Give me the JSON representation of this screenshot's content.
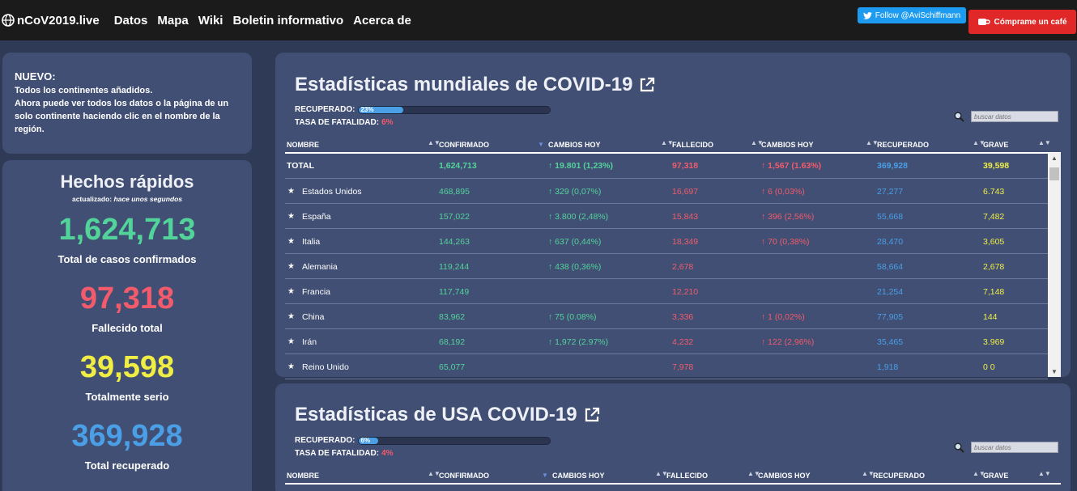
{
  "nav": {
    "brand": "nCoV2019.live",
    "items": [
      "Datos",
      "Mapa",
      "Wiki",
      "Boletin informativo",
      "Acerca de"
    ],
    "twitter": "Follow @AviSchiffmann",
    "coffee": "Cómprame un café"
  },
  "news": {
    "title": "NUEVO:",
    "line1": "Todos los continentes añadidos.",
    "line2": "Ahora puede ver todos los datos o la página de un solo continente haciendo clic en el nombre de la región."
  },
  "facts": {
    "title": "Hechos rápidos",
    "updated_prefix": "actualizado:",
    "updated_value": "hace unos segundos",
    "confirmed": "1,624,713",
    "confirmed_label": "Total de casos confirmados",
    "deaths": "97,318",
    "deaths_label": "Fallecido total",
    "serious": "39,598",
    "serious_label": "Totalmente serio",
    "recovered": "369,928",
    "recovered_label": "Total recuperado"
  },
  "world": {
    "title": "Estadísticas mundiales de COVID-19",
    "recovered_label": "RECUPERADO:",
    "recovered_pct": "23%",
    "recovered_fraction": 0.23,
    "fatality_label": "TASA DE FATALIDAD:",
    "fatality_pct": "6%",
    "search_placeholder": "buscar datos",
    "columns": [
      "NOMBRE",
      "CONFIRMADO",
      "CAMBIOS HOY",
      "FALLECIDO",
      "CAMBIOS HOY",
      "RECUPERADO",
      "GRAVE"
    ],
    "rows": [
      {
        "name": "TOTAL",
        "confirmed": "1,624,713",
        "change": "↑ 19.801 (1,23%)",
        "deaths": "97,318",
        "dchange": "↑ 1,567 (1.63%)",
        "recovered": "369,928",
        "serious": "39,598"
      },
      {
        "name": "Estados Unidos",
        "confirmed": "468,895",
        "change": "↑ 329 (0,07%)",
        "deaths": "16,697",
        "dchange": "↑ 6 (0,03%)",
        "recovered": "27,277",
        "serious": "6.743"
      },
      {
        "name": "España",
        "confirmed": "157,022",
        "change": "↑ 3.800 (2,48%)",
        "deaths": "15,843",
        "dchange": "↑ 396 (2,56%)",
        "recovered": "55,668",
        "serious": "7,482"
      },
      {
        "name": "Italia",
        "confirmed": "144,263",
        "change": "↑ 637 (0,44%)",
        "deaths": "18,349",
        "dchange": "↑ 70 (0,38%)",
        "recovered": "28,470",
        "serious": "3,605"
      },
      {
        "name": "Alemania",
        "confirmed": "119,244",
        "change": "↑ 438 (0,36%)",
        "deaths": "2,678",
        "dchange": "",
        "recovered": "58,664",
        "serious": "2,678"
      },
      {
        "name": "Francia",
        "confirmed": "117,749",
        "change": "",
        "deaths": "12,210",
        "dchange": "",
        "recovered": "21,254",
        "serious": "7,148"
      },
      {
        "name": "China",
        "confirmed": "83,962",
        "change": "↑ 75 (0.08%)",
        "deaths": "3,336",
        "dchange": "↑ 1 (0,02%)",
        "recovered": "77,905",
        "serious": "144"
      },
      {
        "name": "Irán",
        "confirmed": "68,192",
        "change": "↑ 1,972 (2.97%)",
        "deaths": "4,232",
        "dchange": "↑ 122 (2,96%)",
        "recovered": "35,465",
        "serious": "3.969"
      },
      {
        "name": "Reino Unido",
        "confirmed": "65,077",
        "change": "",
        "deaths": "7,978",
        "dchange": "",
        "recovered": "1,918",
        "serious": "0 0"
      }
    ]
  },
  "usa": {
    "title": "Estadísticas de USA COVID-19",
    "recovered_label": "RECUPERADO:",
    "recovered_pct": "6%",
    "recovered_fraction": 0.06,
    "fatality_label": "TASA DE FATALIDAD:",
    "fatality_pct": "4%",
    "search_placeholder": "buscar datos",
    "columns": [
      "NOMBRE",
      "CONFIRMADO",
      "CAMBIOS HOY",
      "FALLECIDO",
      "CAMBIOS HOY",
      "RECUPERADO",
      "GRAVE"
    ]
  },
  "colors": {
    "confirmed": "#52d39a",
    "deaths": "#f25b6b",
    "serious": "#f0ee44",
    "recovered": "#4a9fe7"
  }
}
